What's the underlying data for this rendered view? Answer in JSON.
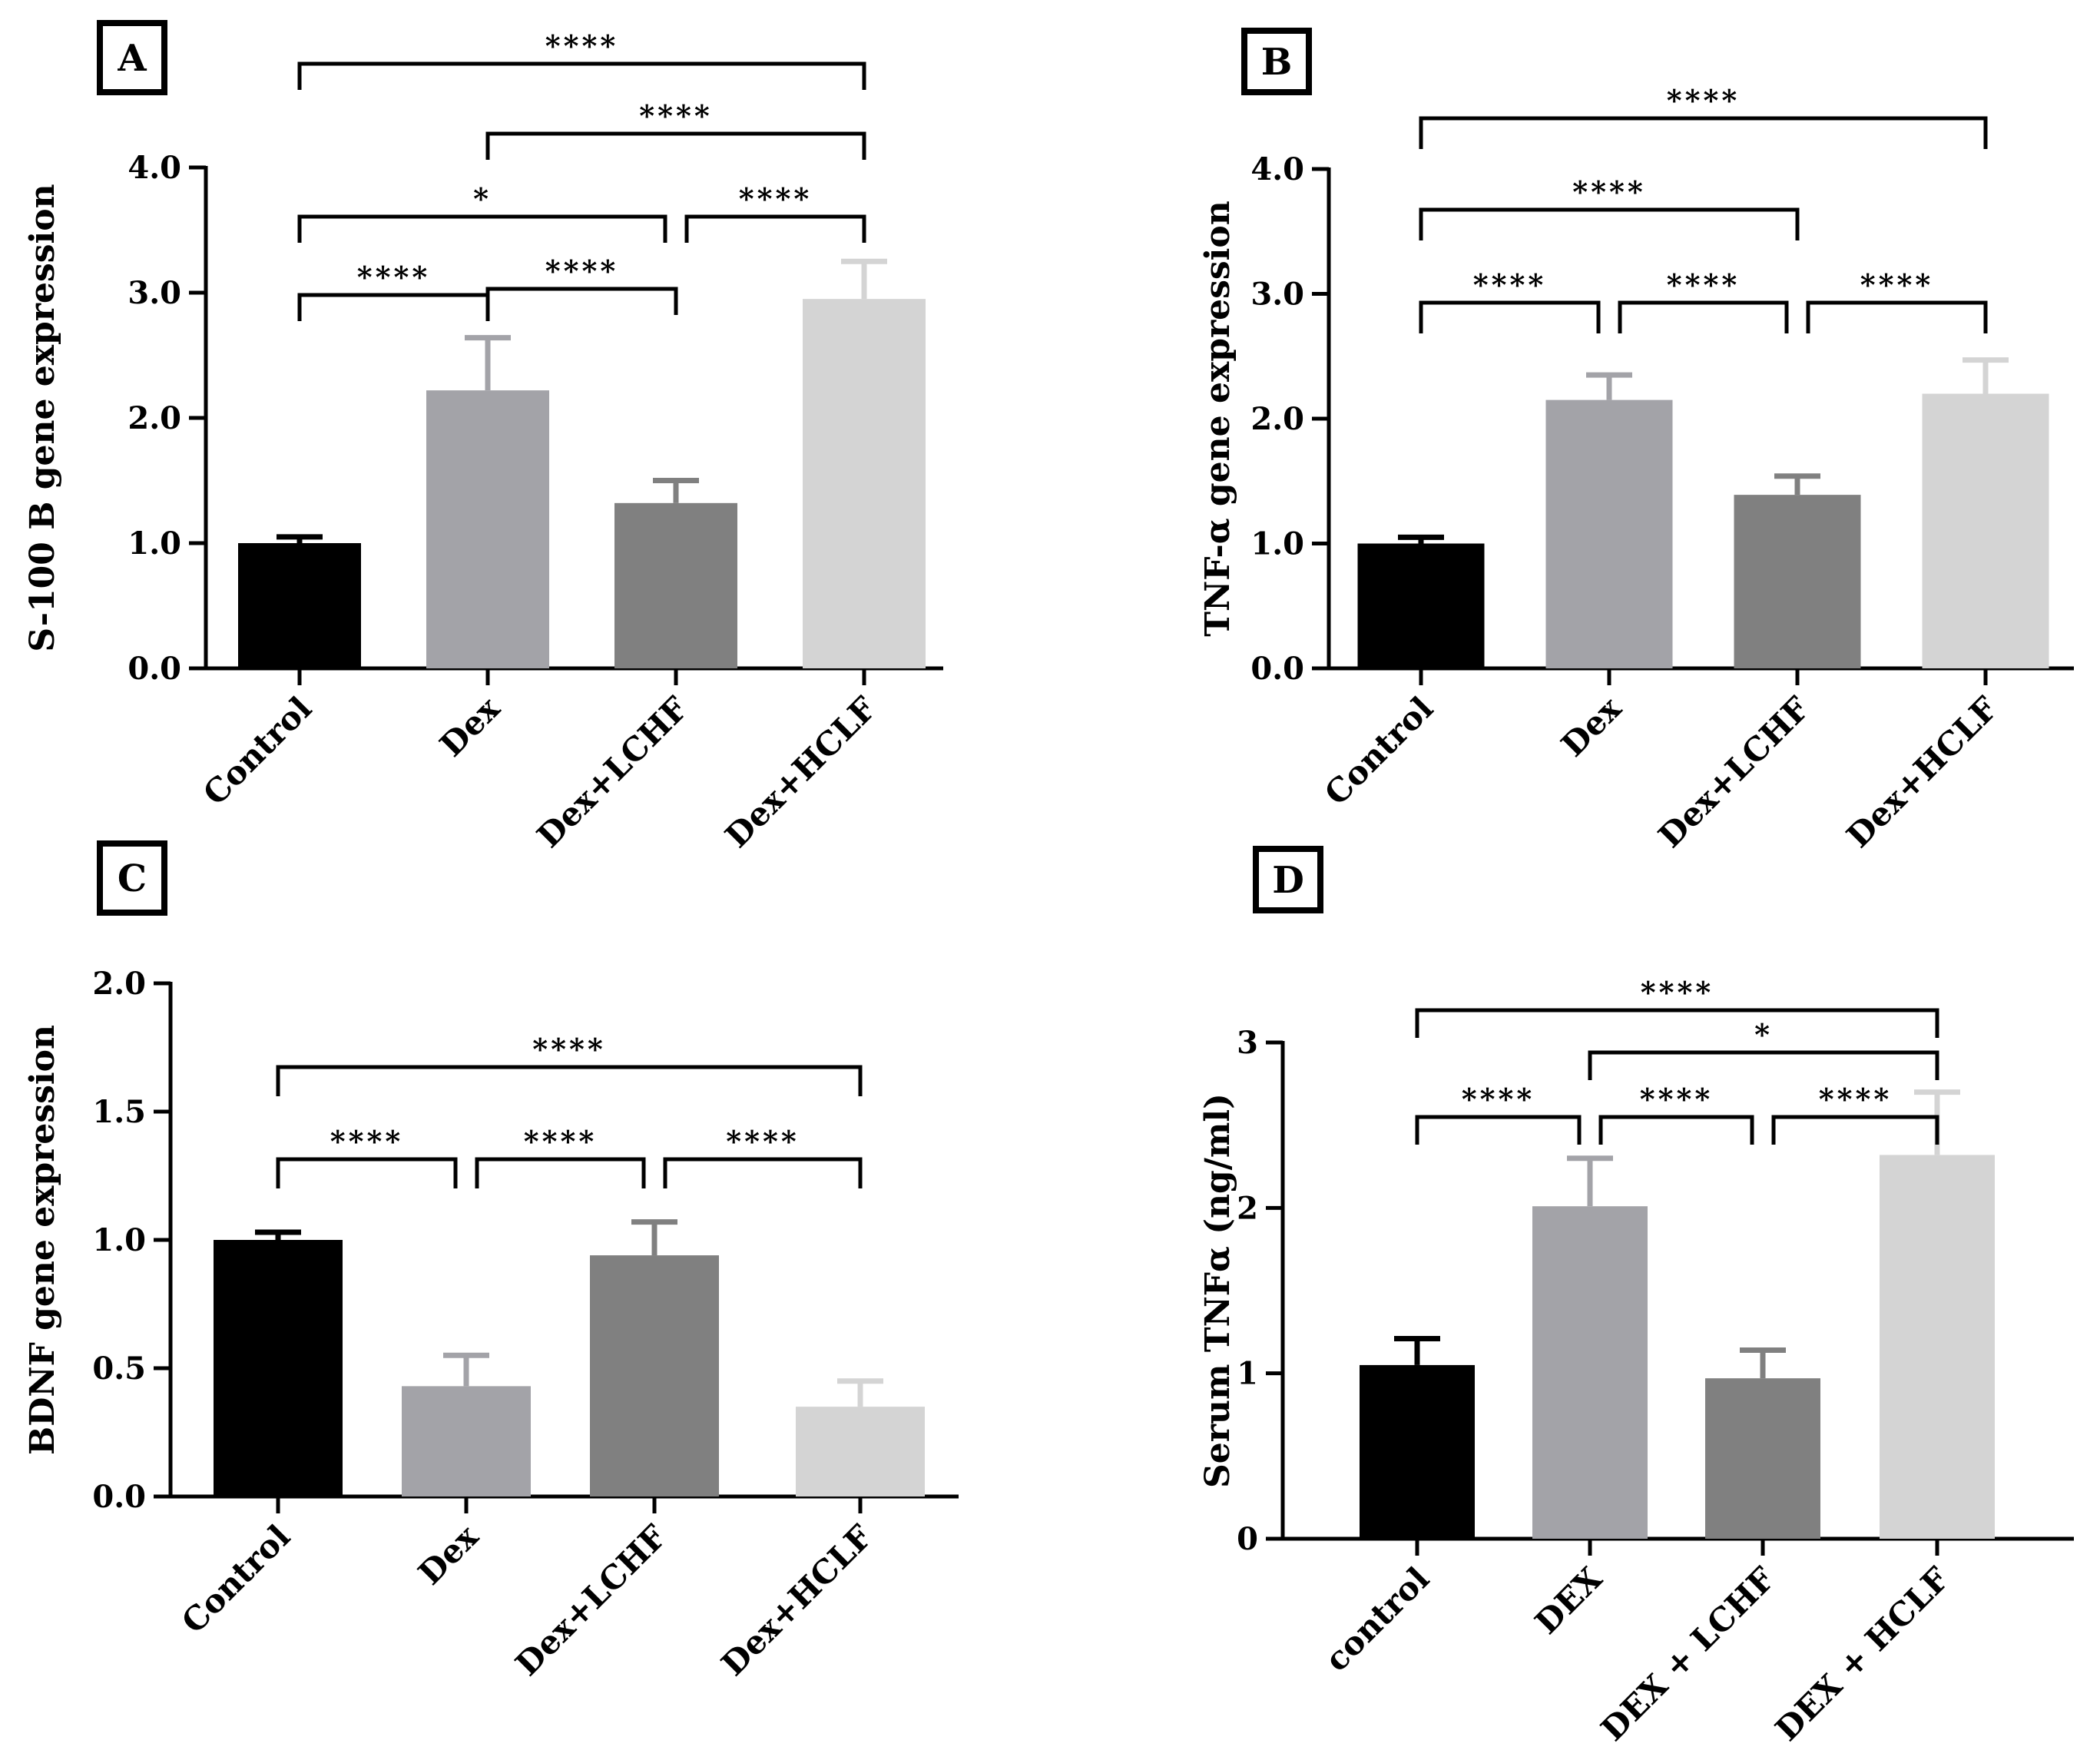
{
  "chart_data": [
    {
      "panel_label": "A",
      "type": "bar",
      "ylabel": "S-100 B gene expression",
      "categories": [
        "Control",
        "Dex",
        "Dex+LCHF",
        "Dex+HCLF"
      ],
      "values": [
        1.0,
        2.22,
        1.32,
        2.95
      ],
      "errors": [
        0.05,
        0.42,
        0.18,
        0.3
      ],
      "ylim": [
        0,
        4.0
      ],
      "yticks": [
        "0.0",
        "1.0",
        "2.0",
        "3.0",
        "4.0"
      ],
      "significance": [
        {
          "from": 0,
          "to": 3,
          "label": "****"
        },
        {
          "from": 1,
          "to": 3,
          "label": "****"
        },
        {
          "from": 0,
          "to": 2,
          "label": "*"
        },
        {
          "from": 2,
          "to": 3,
          "label": "****"
        },
        {
          "from": 0,
          "to": 1,
          "label": "****"
        },
        {
          "from": 1,
          "to": 2,
          "label": "****"
        }
      ]
    },
    {
      "panel_label": "B",
      "type": "bar",
      "ylabel": "TNF-α gene expression",
      "categories": [
        "Control",
        "Dex",
        "Dex+LCHF",
        "Dex+HCLF"
      ],
      "values": [
        1.0,
        2.15,
        1.39,
        2.2
      ],
      "errors": [
        0.05,
        0.2,
        0.15,
        0.27
      ],
      "ylim": [
        0,
        4.0
      ],
      "yticks": [
        "0.0",
        "1.0",
        "2.0",
        "3.0",
        "4.0"
      ],
      "significance": [
        {
          "from": 0,
          "to": 3,
          "label": "****"
        },
        {
          "from": 0,
          "to": 2,
          "label": "****"
        },
        {
          "from": 0,
          "to": 1,
          "label": "****"
        },
        {
          "from": 1,
          "to": 2,
          "label": "****"
        },
        {
          "from": 2,
          "to": 3,
          "label": "****"
        }
      ]
    },
    {
      "panel_label": "C",
      "type": "bar",
      "ylabel": "BDNF gene expression",
      "categories": [
        "Control",
        "Dex",
        "Dex+LCHF",
        "Dex+HCLF"
      ],
      "values": [
        1.0,
        0.43,
        0.94,
        0.35
      ],
      "errors": [
        0.03,
        0.12,
        0.13,
        0.1
      ],
      "ylim": [
        0,
        2.0
      ],
      "yticks": [
        "0.0",
        "0.5",
        "1.0",
        "1.5",
        "2.0"
      ],
      "significance": [
        {
          "from": 0,
          "to": 3,
          "label": "****"
        },
        {
          "from": 0,
          "to": 1,
          "label": "****"
        },
        {
          "from": 1,
          "to": 2,
          "label": "****"
        },
        {
          "from": 2,
          "to": 3,
          "label": "****"
        }
      ]
    },
    {
      "panel_label": "D",
      "type": "bar",
      "ylabel": "Serum TNFα (ng/ml)",
      "categories": [
        "control",
        "DEX",
        "DEX + LCHF",
        "DEX + HCLF"
      ],
      "values": [
        1.05,
        2.01,
        0.97,
        2.32
      ],
      "errors": [
        0.16,
        0.29,
        0.17,
        0.38
      ],
      "ylim": [
        0,
        3
      ],
      "yticks": [
        "0",
        "1",
        "2",
        "3"
      ],
      "significance": [
        {
          "from": 0,
          "to": 3,
          "label": "****"
        },
        {
          "from": 1,
          "to": 3,
          "label": "*"
        },
        {
          "from": 0,
          "to": 1,
          "label": "****"
        },
        {
          "from": 1,
          "to": 2,
          "label": "****"
        },
        {
          "from": 2,
          "to": 3,
          "label": "****"
        }
      ]
    }
  ],
  "colors": {
    "bars": [
      "#000000",
      "#a3a3a8",
      "#808080",
      "#d4d4d4"
    ],
    "axis": "#000000"
  }
}
